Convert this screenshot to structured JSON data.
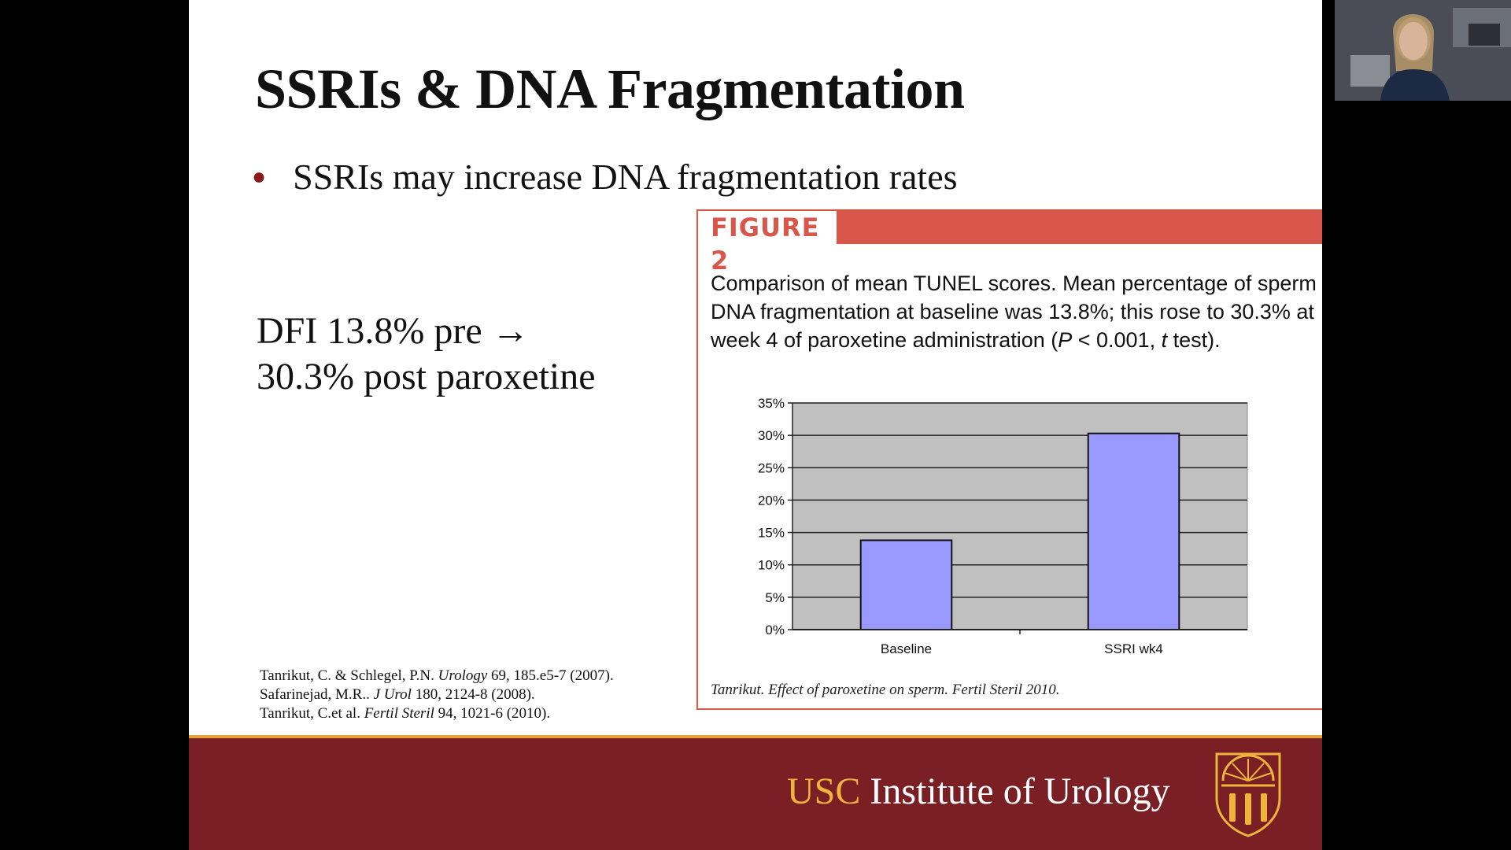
{
  "slide": {
    "title": "SSRIs & DNA Fragmentation",
    "bullet": "SSRIs may increase DNA fragmentation rates",
    "dfi_line1": "DFI 13.8% pre →",
    "dfi_line2": "30.3% post paroxetine",
    "references": [
      {
        "authors": "Tanrikut, C. & Schlegel, P.N.",
        "journal": "Urology",
        "citation": "69, 185.e5-7 (2007)."
      },
      {
        "authors": "Safarinejad, M.R..",
        "journal": "J Urol",
        "citation": "180, 2124-8 (2008)."
      },
      {
        "authors": "Tanrikut, C.et al.",
        "journal": "Fertil Steril",
        "citation": "94, 1021-6 (2010)."
      }
    ]
  },
  "figure": {
    "label": "FIGURE 2",
    "caption_part1": "Comparison of mean TUNEL scores. Mean percentage of sperm DNA fragmentation at baseline was 13.8%; this rose to 30.3% at week 4 of paroxetine administration (",
    "caption_p": "P",
    "caption_part2": " < 0.001, ",
    "caption_t": "t",
    "caption_part3": " test).",
    "credit": "Tanrikut. Effect of paroxetine on sperm. Fertil Steril 2010."
  },
  "footer": {
    "usc": "USC",
    "institute": "Institute of Urology"
  },
  "colors": {
    "footer_bg": "#7a1f24",
    "footer_accent": "#e8a33a",
    "usc_gold": "#f0b43c",
    "figure_red": "#d9574a",
    "bar_fill": "#9999ff",
    "plot_bg": "#c0c0c0",
    "bullet_dot": "#8b1a1a"
  },
  "chart_data": {
    "type": "bar",
    "categories": [
      "Baseline",
      "SSRI wk4"
    ],
    "values": [
      13.8,
      30.3
    ],
    "ylim": [
      0,
      35
    ],
    "yticks": [
      "0%",
      "5%",
      "10%",
      "15%",
      "20%",
      "25%",
      "30%",
      "35%"
    ],
    "grid": true,
    "title": "",
    "xlabel": "",
    "ylabel": ""
  }
}
